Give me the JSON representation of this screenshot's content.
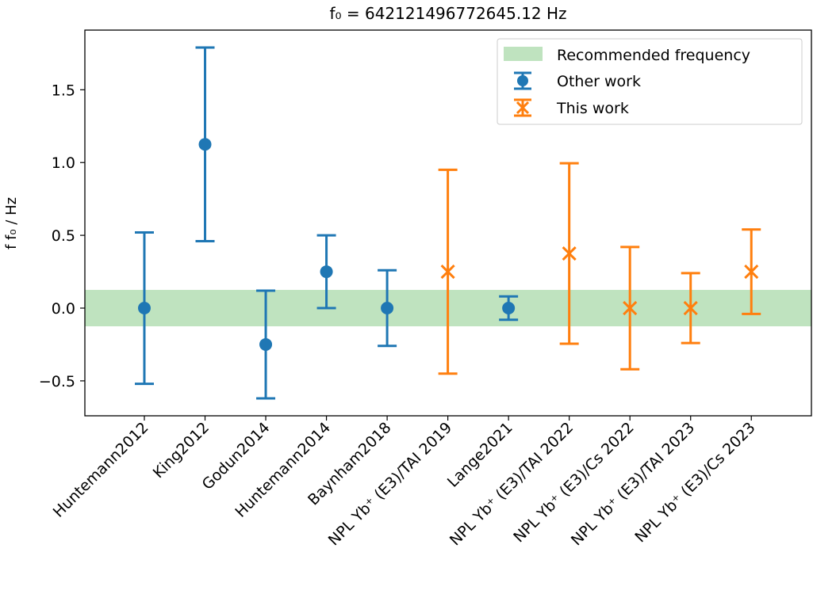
{
  "chart_data": {
    "type": "scatter",
    "title": "f₀ = 642121496772645.12 Hz",
    "ylabel": "f   f₀ / Hz",
    "xlabel": "",
    "ylim": [
      -0.74,
      1.91
    ],
    "xlim": [
      -0.98,
      10.99
    ],
    "yticks": [
      -0.5,
      0.0,
      0.5,
      1.0,
      1.5
    ],
    "ytick_labels": [
      "−0.5",
      "0.0",
      "0.5",
      "1.0",
      "1.5"
    ],
    "grid": false,
    "legend_placement": "upper right",
    "categories": [
      "Huntemann2012",
      "King2012",
      "Godun2014",
      "Huntemann2014",
      "Baynham2018",
      "NPL Yb⁺ (E3)/TAI 2019",
      "Lange2021",
      "NPL Yb⁺ (E3)/TAI 2022",
      "NPL Yb⁺ (E3)/Cs 2022",
      "NPL Yb⁺ (E3)/TAI 2023",
      "NPL Yb⁺ (E3)/Cs 2023"
    ],
    "band": {
      "name": "Recommended frequency",
      "center": 0.0,
      "half_width": 0.125,
      "color": "#bfe3bf"
    },
    "series": [
      {
        "name": "Other work",
        "marker": "circle",
        "color": "#1f77b4",
        "x": [
          0,
          1,
          2,
          3,
          4,
          6
        ],
        "y": [
          0.0,
          1.125,
          -0.25,
          0.25,
          0.0,
          0.0
        ],
        "yerr": [
          0.52,
          0.665,
          0.37,
          0.25,
          0.26,
          0.08
        ]
      },
      {
        "name": "This work",
        "marker": "x",
        "color": "#ff7f0e",
        "x": [
          5,
          7,
          8,
          9,
          10
        ],
        "y": [
          0.25,
          0.375,
          0.0,
          0.0,
          0.25
        ],
        "yerr": [
          0.7,
          0.62,
          0.42,
          0.24,
          0.29
        ]
      }
    ]
  }
}
